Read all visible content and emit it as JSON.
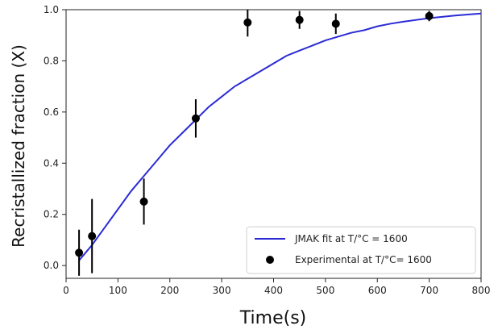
{
  "chart_data": {
    "type": "scatter",
    "title": "",
    "xlabel": "Time(s)",
    "ylabel": "Recristallized fraction (X)",
    "xlim": [
      0,
      800
    ],
    "ylim": [
      -0.05,
      1.0
    ],
    "xticks": [
      0,
      100,
      200,
      300,
      400,
      500,
      600,
      700,
      800
    ],
    "yticks": [
      0.0,
      0.2,
      0.4,
      0.6,
      0.8,
      1.0
    ],
    "xtick_labels": [
      "0",
      "100",
      "200",
      "300",
      "400",
      "500",
      "600",
      "700",
      "800"
    ],
    "ytick_labels": [
      "0.0",
      "0.2",
      "0.4",
      "0.6",
      "0.8",
      "1.0"
    ],
    "grid": false,
    "legend_position": "bottom-right",
    "series": [
      {
        "name": "JMAK fit at T/°C = 1600",
        "kind": "line",
        "color": "#2b2bd6",
        "x": [
          25,
          50,
          75,
          100,
          125,
          150,
          175,
          200,
          225,
          250,
          275,
          300,
          325,
          350,
          375,
          400,
          425,
          450,
          475,
          500,
          525,
          550,
          575,
          600,
          625,
          650,
          675,
          700,
          725,
          750,
          775,
          800
        ],
        "y": [
          0.02,
          0.08,
          0.15,
          0.22,
          0.29,
          0.35,
          0.41,
          0.47,
          0.52,
          0.57,
          0.62,
          0.66,
          0.7,
          0.73,
          0.76,
          0.79,
          0.82,
          0.84,
          0.86,
          0.88,
          0.895,
          0.91,
          0.92,
          0.935,
          0.945,
          0.953,
          0.96,
          0.967,
          0.972,
          0.977,
          0.981,
          0.985
        ]
      },
      {
        "name": "Experimental at T/°C= 1600",
        "kind": "scatter",
        "color": "#000000",
        "x": [
          25,
          50,
          150,
          250,
          350,
          450,
          520,
          700
        ],
        "y": [
          0.05,
          0.115,
          0.25,
          0.575,
          0.95,
          0.96,
          0.945,
          0.975
        ],
        "y_err": [
          0.09,
          0.145,
          0.09,
          0.075,
          0.055,
          0.035,
          0.04,
          0.02
        ]
      }
    ]
  }
}
